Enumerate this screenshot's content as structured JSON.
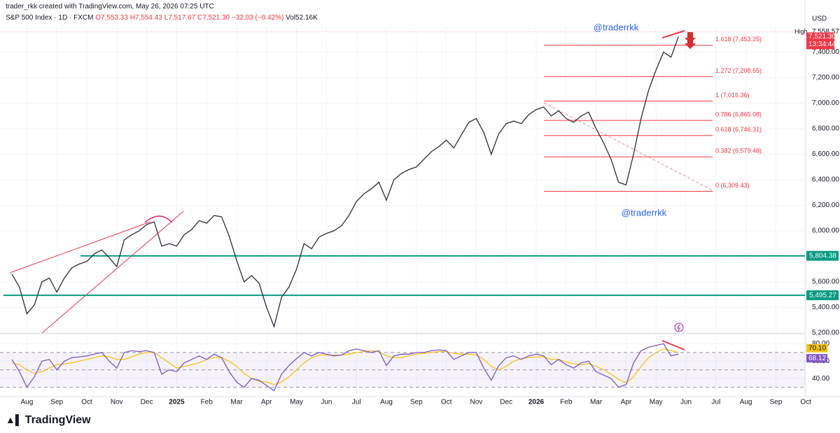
{
  "header": {
    "credit": "trader_rkk created with TradingView.com, May 26, 2026 07:25 UTC",
    "symbol": "S&P 500 Index · 1D · FXCM",
    "open": "O7,553.33",
    "high": "H7,554.43",
    "low": "L7,517.67",
    "close": "C7,521.30",
    "change": "−32.03 (−0.42%)",
    "volume": "Vol52.16K"
  },
  "watermarks": [
    "@traderrkk",
    "@traderrkk"
  ],
  "footer": {
    "logo": "TradingView"
  },
  "chart_data": [
    {
      "type": "line",
      "currency": "USD",
      "color": "#2a2e39",
      "grid": true,
      "categories": [
        null,
        null,
        "Aug",
        null,
        null,
        null,
        "Sep",
        null,
        null,
        null,
        "Oct",
        null,
        null,
        null,
        "Nov",
        null,
        null,
        null,
        "Dec",
        null,
        null,
        null,
        "2025",
        null,
        null,
        null,
        "Feb",
        null,
        null,
        null,
        "Mar",
        null,
        null,
        null,
        "Apr",
        null,
        null,
        null,
        "May",
        null,
        null,
        null,
        "Jun",
        null,
        null,
        null,
        "Jul",
        null,
        null,
        null,
        "Aug",
        null,
        null,
        null,
        "Sep",
        null,
        null,
        null,
        "Oct",
        null,
        null,
        null,
        "Nov",
        null,
        null,
        null,
        "Dec",
        null,
        null,
        null,
        "2026",
        null,
        null,
        null,
        "Feb",
        null,
        null,
        null,
        "Mar",
        null,
        null,
        null,
        "Apr",
        null,
        null,
        null,
        "May",
        null,
        null,
        null,
        "Jun",
        null,
        null,
        null,
        "Jul",
        null,
        null,
        null,
        "Aug",
        null,
        null,
        null,
        "Sep",
        null,
        null,
        null,
        "Oct"
      ],
      "series": [
        {
          "color": "#2a2e39",
          "values": [
            5660,
            5560,
            5350,
            5420,
            5600,
            5630,
            5520,
            5630,
            5710,
            5740,
            5760,
            5820,
            5850,
            5790,
            5720,
            5930,
            5970,
            6000,
            6050,
            6070,
            5880,
            5900,
            5880,
            5970,
            6010,
            6080,
            6060,
            6120,
            6110,
            5960,
            5770,
            5600,
            5650,
            5590,
            5400,
            5250,
            5480,
            5560,
            5700,
            5900,
            5860,
            5950,
            5980,
            6000,
            6040,
            6120,
            6230,
            6290,
            6330,
            6380,
            6240,
            6400,
            6450,
            6480,
            6500,
            6560,
            6620,
            6660,
            6710,
            6650,
            6750,
            6850,
            6880,
            6770,
            6600,
            6760,
            6840,
            6860,
            6840,
            6910,
            6950,
            6970,
            6900,
            6940,
            6880,
            6850,
            6900,
            6930,
            6800,
            6690,
            6560,
            6380,
            6360,
            6600,
            6880,
            7100,
            7260,
            7400,
            7360,
            7521.3,
            null,
            null,
            null,
            null,
            null,
            null,
            null,
            null,
            null,
            null,
            null,
            null,
            null,
            null,
            null,
            null,
            null
          ]
        }
      ],
      "ylim": [
        5200,
        7600
      ],
      "yticks": [
        {
          "value": 5200,
          "label": "5,200.00"
        },
        {
          "value": 5400,
          "label": "5,400.00"
        },
        {
          "value": 5600,
          "label": "5,600.00"
        },
        {
          "value": 6000,
          "label": "6,000.00"
        },
        {
          "value": 6200,
          "label": "6,200.00"
        },
        {
          "value": 6400,
          "label": "6,400.00"
        },
        {
          "value": 6600,
          "label": "6,600.00"
        },
        {
          "value": 6800,
          "label": "6,800.00"
        },
        {
          "value": 7000,
          "label": "7,000.00"
        },
        {
          "value": 7200,
          "label": "7,200.00"
        },
        {
          "value": 7400,
          "label": "7,400.00"
        }
      ],
      "high": {
        "text": "High",
        "value": 7558.57,
        "label": "7,558.57"
      },
      "last": {
        "value": 7521.3,
        "label": "7,521.30",
        "countdown": "13:34:44",
        "color": "#f23645"
      },
      "levels": [
        {
          "value": 5804.38,
          "label": "5,804.38",
          "color": "#089981"
        },
        {
          "value": 5495.27,
          "label": "5,495.27",
          "color": "#089981"
        }
      ],
      "fib_color": "#f23645",
      "fib_levels": [
        {
          "value": 7453.25,
          "label": "1.618 (7,453.25)"
        },
        {
          "value": 7208.65,
          "label": "1.272 (7,208.65)"
        },
        {
          "value": 7016.36,
          "label": "1 (7,016.36)"
        },
        {
          "value": 6865.08,
          "label": "0.786 (6,865.08)"
        },
        {
          "value": 6746.31,
          "label": "0.618 (6,746.31)"
        },
        {
          "value": 6579.48,
          "label": "0.382 (6,579.48)"
        },
        {
          "value": 6309.43,
          "label": "0 (6,309.43)"
        }
      ]
    },
    {
      "type": "line",
      "series": [
        {
          "color": "#f5c518",
          "last_label": "70.10",
          "values": [
            58,
            56,
            50,
            46,
            48,
            52,
            56,
            57,
            58,
            60,
            62,
            64,
            66,
            65,
            62,
            62,
            65,
            68,
            70,
            70,
            64,
            58,
            52,
            54,
            56,
            58,
            62,
            64,
            64,
            60,
            54,
            46,
            40,
            37,
            36,
            33,
            36,
            42,
            50,
            58,
            64,
            67,
            67,
            67,
            67,
            68,
            70,
            71,
            72,
            71,
            66,
            64,
            64,
            66,
            68,
            69,
            70,
            71,
            71,
            69,
            68,
            68,
            67,
            62,
            54,
            50,
            54,
            60,
            63,
            64,
            65,
            65,
            62,
            62,
            59,
            57,
            56,
            57,
            54,
            50,
            45,
            39,
            35,
            42,
            54,
            64,
            70,
            74,
            72,
            70.1,
            null,
            null,
            null,
            null,
            null,
            null,
            null,
            null,
            null,
            null,
            null,
            null,
            null,
            null,
            null,
            null,
            null
          ]
        },
        {
          "color": "#7e57c2",
          "last_label": "68.12",
          "values": [
            62,
            48,
            30,
            42,
            60,
            62,
            50,
            60,
            64,
            65,
            66,
            68,
            70,
            60,
            52,
            70,
            72,
            71,
            72,
            70,
            45,
            50,
            48,
            58,
            62,
            66,
            62,
            68,
            64,
            48,
            36,
            30,
            40,
            38,
            32,
            26,
            45,
            55,
            63,
            70,
            66,
            70,
            68,
            66,
            67,
            72,
            74,
            72,
            70,
            72,
            55,
            66,
            68,
            68,
            70,
            70,
            72,
            73,
            72,
            62,
            66,
            70,
            70,
            52,
            38,
            55,
            64,
            66,
            62,
            66,
            68,
            66,
            56,
            62,
            56,
            52,
            58,
            60,
            48,
            44,
            40,
            30,
            33,
            58,
            72,
            76,
            78,
            80,
            66,
            68.12,
            null,
            null,
            null,
            null,
            null,
            null,
            null,
            null,
            null,
            null,
            null,
            null,
            null,
            null,
            null,
            null,
            null
          ]
        }
      ],
      "ylim": [
        20,
        90
      ],
      "yticks": [
        {
          "value": 40,
          "label": "40.00"
        },
        {
          "value": 60,
          "label": "60.00"
        },
        {
          "value": 80,
          "label": "80.00"
        }
      ],
      "bands": [
        30,
        50,
        70
      ]
    }
  ]
}
